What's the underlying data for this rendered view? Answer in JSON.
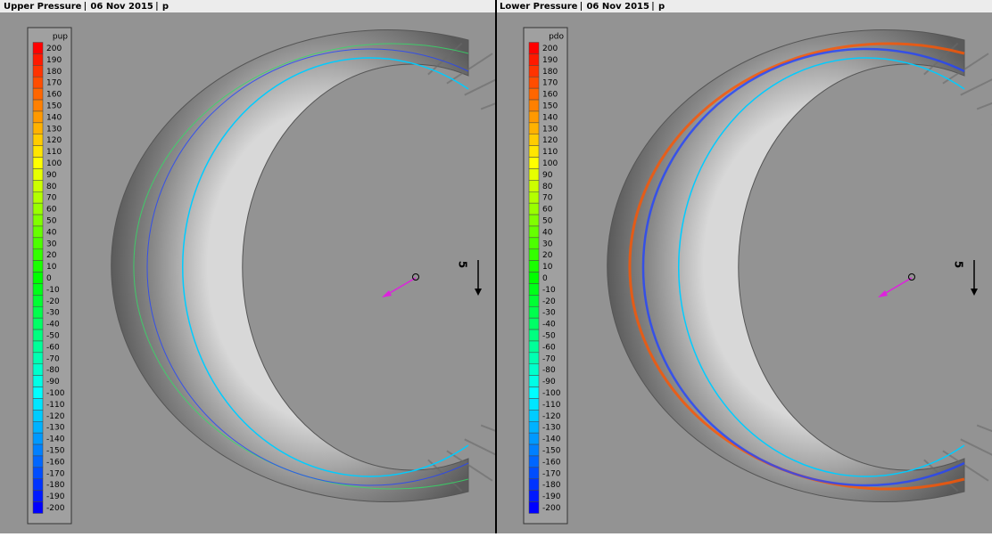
{
  "panels": [
    {
      "header": {
        "title": "Upper Pressure",
        "date": "06 Nov 2015",
        "variable": "p"
      },
      "legend": {
        "title": "pup",
        "labels": [
          200,
          190,
          180,
          170,
          160,
          150,
          140,
          130,
          120,
          110,
          100,
          90,
          80,
          70,
          60,
          50,
          40,
          30,
          20,
          10,
          0,
          -10,
          -20,
          -30,
          -40,
          -50,
          -60,
          -70,
          -80,
          -90,
          -100,
          -110,
          -120,
          -130,
          -140,
          -150,
          -160,
          -170,
          -180,
          -190,
          -200
        ]
      },
      "scale_label": "5"
    },
    {
      "header": {
        "title": "Lower Pressure",
        "date": "06 Nov 2015",
        "variable": "p"
      },
      "legend": {
        "title": "pdo",
        "labels": [
          200,
          190,
          180,
          170,
          160,
          150,
          140,
          130,
          120,
          110,
          100,
          90,
          80,
          70,
          60,
          50,
          40,
          30,
          20,
          10,
          0,
          -10,
          -20,
          -30,
          -40,
          -50,
          -60,
          -70,
          -80,
          -90,
          -100,
          -110,
          -120,
          -130,
          -140,
          -150,
          -160,
          -170,
          -180,
          -190,
          -200
        ]
      },
      "scale_label": "5"
    }
  ]
}
